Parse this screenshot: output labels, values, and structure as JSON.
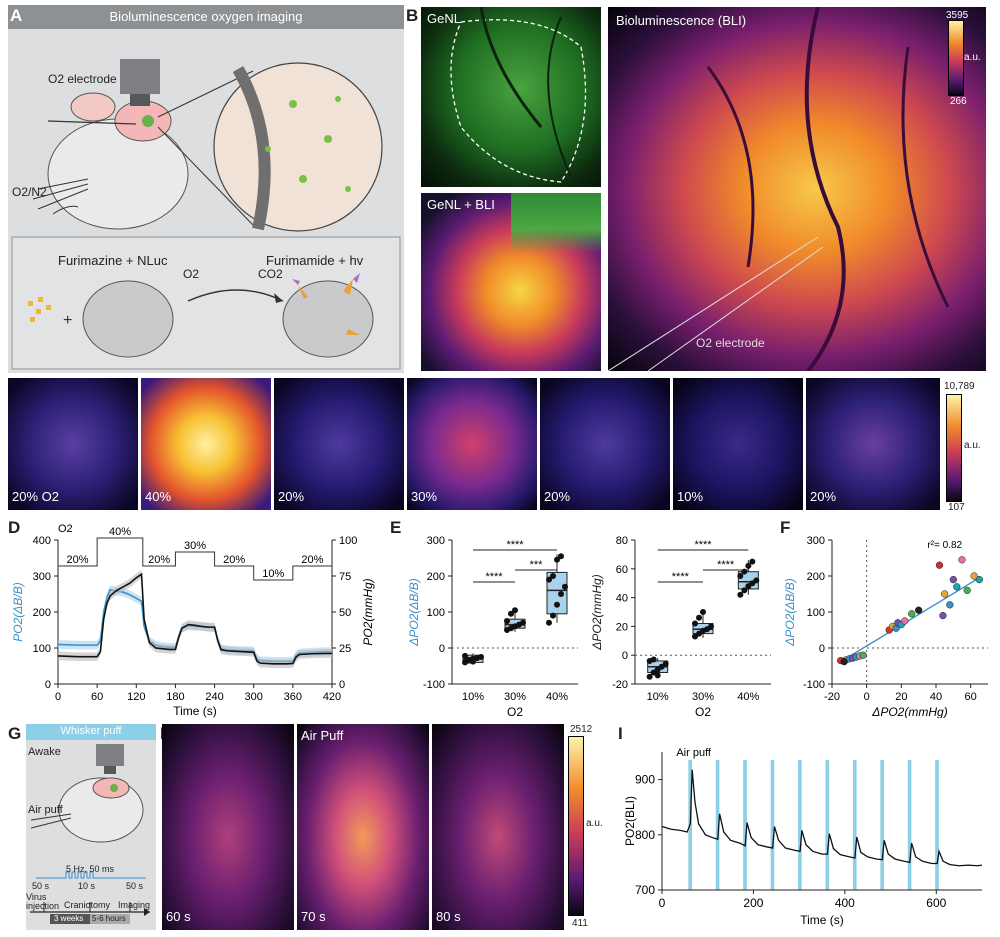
{
  "panels": {
    "A": {
      "label": "A",
      "title": "Bioluminescence oxygen imaging",
      "electrode": "O2 electrode",
      "gas": "O2/N2",
      "reaction_left": "Furimazine + NLuc",
      "reaction_right": "Furimamide + hv",
      "reactant": "O2",
      "product": "CO2"
    },
    "B": {
      "label": "B",
      "img1": "GeNL",
      "img2": "GeNL + BLI",
      "img3": "Bioluminescence (BLI)",
      "cbar_max": "3595",
      "cbar_min": "266",
      "cbar_unit": "a.u.",
      "electrode_label": "O2 electrode"
    },
    "C": {
      "label": "C",
      "frames": [
        "20% O2",
        "40%",
        "20%",
        "30%",
        "20%",
        "10%",
        "20%"
      ],
      "cbar_max": "10,789",
      "cbar_min": "107",
      "cbar_unit": "a.u."
    },
    "D": {
      "label": "D"
    },
    "E": {
      "label": "E"
    },
    "F": {
      "label": "F"
    },
    "G": {
      "label": "G",
      "title": "Whisker puff",
      "awake": "Awake",
      "air_puff": "Air puff",
      "stim": "5 Hz, 50 ms",
      "t1": "50 s",
      "t2": "10 s",
      "t3": "50 s",
      "tl_a": "Virus injection",
      "tl_b": "Craniotomy",
      "tl_c": "Imaging",
      "tl_d": "3 weeks",
      "tl_e": "5-6 hours"
    },
    "H": {
      "label": "H",
      "frames": [
        "60 s",
        "70 s",
        "80 s"
      ],
      "mid_title": "Air Puff",
      "cbar_max": "2512",
      "cbar_min": "411",
      "cbar_unit": "a.u."
    },
    "I": {
      "label": "I"
    }
  },
  "chart_data": [
    {
      "id": "D",
      "type": "line",
      "xlabel": "Time (s)",
      "ylabel_left": "PO2(ΔB/B)",
      "ylabel_right": "PO2(mmHg)",
      "xlim": [
        0,
        420
      ],
      "ylim_left": [
        0,
        400
      ],
      "ylim_right": [
        0,
        100
      ],
      "xticks": [
        0,
        60,
        120,
        180,
        240,
        300,
        360,
        420
      ],
      "yticks_left": [
        0,
        100,
        200,
        300,
        400
      ],
      "yticks_right": [
        0,
        25,
        50,
        75,
        100
      ],
      "o2_label": "O2",
      "o2_steps": [
        {
          "label": "20%",
          "from": 0,
          "to": 60,
          "level": 20
        },
        {
          "label": "40%",
          "from": 60,
          "to": 130,
          "level": 40
        },
        {
          "label": "20%",
          "from": 130,
          "to": 180,
          "level": 20
        },
        {
          "label": "30%",
          "from": 180,
          "to": 240,
          "level": 30
        },
        {
          "label": "20%",
          "from": 240,
          "to": 300,
          "level": 20
        },
        {
          "label": "10%",
          "from": 300,
          "to": 360,
          "level": 10
        },
        {
          "label": "20%",
          "from": 360,
          "to": 420,
          "level": 20
        }
      ],
      "series": [
        {
          "color": "#3a8fc8",
          "x": [
            0,
            30,
            60,
            65,
            70,
            75,
            80,
            90,
            100,
            110,
            120,
            128,
            132,
            140,
            150,
            160,
            170,
            180,
            185,
            190,
            200,
            210,
            220,
            230,
            240,
            245,
            250,
            260,
            280,
            300,
            305,
            310,
            330,
            350,
            360,
            365,
            370,
            390,
            410,
            420
          ],
          "y": [
            110,
            108,
            108,
            120,
            200,
            240,
            262,
            258,
            255,
            248,
            238,
            230,
            160,
            120,
            108,
            104,
            102,
            102,
            130,
            155,
            162,
            160,
            160,
            158,
            156,
            120,
            98,
            95,
            93,
            92,
            70,
            65,
            63,
            63,
            64,
            80,
            86,
            88,
            90,
            90
          ]
        },
        {
          "color": "#111111",
          "x": [
            0,
            30,
            60,
            65,
            70,
            75,
            80,
            90,
            100,
            110,
            120,
            128,
            132,
            140,
            150,
            160,
            170,
            180,
            185,
            190,
            200,
            210,
            220,
            230,
            240,
            245,
            250,
            260,
            280,
            300,
            305,
            310,
            330,
            350,
            360,
            365,
            370,
            390,
            410,
            420
          ],
          "y": [
            78,
            76,
            76,
            90,
            180,
            225,
            245,
            260,
            270,
            280,
            295,
            305,
            180,
            115,
            100,
            98,
            96,
            96,
            130,
            155,
            165,
            163,
            160,
            158,
            158,
            120,
            95,
            92,
            90,
            88,
            64,
            58,
            56,
            56,
            57,
            75,
            82,
            84,
            85,
            85
          ]
        }
      ]
    },
    {
      "id": "E1",
      "type": "box",
      "xlabel": "O2",
      "ylabel": "ΔPO2(ΔB/B)",
      "categories": [
        "10%",
        "30%",
        "40%"
      ],
      "ylim": [
        -100,
        300
      ],
      "yticks": [
        -100,
        0,
        100,
        200,
        300
      ],
      "boxes": [
        {
          "q1": -40,
          "median": -30,
          "q3": -20,
          "min": -45,
          "max": -15
        },
        {
          "q1": 55,
          "median": 65,
          "q3": 80,
          "min": 45,
          "max": 105
        },
        {
          "q1": 95,
          "median": 160,
          "q3": 210,
          "min": 70,
          "max": 260
        }
      ],
      "points": [
        [
          -40,
          -35,
          -30,
          -28,
          -25,
          -22,
          -33,
          -38
        ],
        [
          50,
          55,
          60,
          65,
          70,
          75,
          95,
          105
        ],
        [
          70,
          90,
          120,
          150,
          170,
          190,
          200,
          245,
          255
        ]
      ],
      "significance": [
        "****",
        "***",
        "****"
      ]
    },
    {
      "id": "E2",
      "type": "box",
      "xlabel": "O2",
      "ylabel": "ΔPO2(mmHg)",
      "categories": [
        "10%",
        "30%",
        "40%"
      ],
      "ylim": [
        -20,
        80
      ],
      "yticks": [
        -20,
        0,
        20,
        40,
        60,
        80
      ],
      "boxes": [
        {
          "q1": -12,
          "median": -8,
          "q3": -4,
          "min": -16,
          "max": -2
        },
        {
          "q1": 15,
          "median": 18,
          "q3": 22,
          "min": 12,
          "max": 30
        },
        {
          "q1": 46,
          "median": 51,
          "q3": 58,
          "min": 42,
          "max": 66
        }
      ],
      "points": [
        [
          -15,
          -12,
          -10,
          -8,
          -6,
          -4,
          -3,
          -14
        ],
        [
          13,
          15,
          17,
          18,
          20,
          22,
          26,
          30
        ],
        [
          42,
          45,
          48,
          50,
          52,
          55,
          58,
          62,
          65
        ]
      ],
      "significance": [
        "****",
        "****",
        "****"
      ]
    },
    {
      "id": "F",
      "type": "scatter",
      "xlabel": "ΔPO2(mmHg)",
      "ylabel": "ΔPO2(ΔB/B)",
      "xlim": [
        -20,
        70
      ],
      "ylim": [
        -100,
        300
      ],
      "xticks": [
        -20,
        0,
        20,
        40,
        60
      ],
      "yticks": [
        -100,
        0,
        100,
        200,
        300
      ],
      "annotation": "r²= 0.82",
      "points": [
        {
          "x": -15,
          "y": -35,
          "c": "#d62f2f"
        },
        {
          "x": -12,
          "y": -33,
          "c": "#e8a23a"
        },
        {
          "x": -10,
          "y": -30,
          "c": "#3a8fc8"
        },
        {
          "x": -8,
          "y": -28,
          "c": "#7a4fb0"
        },
        {
          "x": -6,
          "y": -25,
          "c": "#1aa5b0"
        },
        {
          "x": -4,
          "y": -22,
          "c": "#e56fa8"
        },
        {
          "x": -2,
          "y": -20,
          "c": "#4caf50"
        },
        {
          "x": -13,
          "y": -38,
          "c": "#222222"
        },
        {
          "x": 13,
          "y": 50,
          "c": "#d62f2f"
        },
        {
          "x": 15,
          "y": 60,
          "c": "#e8a23a"
        },
        {
          "x": 17,
          "y": 55,
          "c": "#3a8fc8"
        },
        {
          "x": 18,
          "y": 70,
          "c": "#7a4fb0"
        },
        {
          "x": 20,
          "y": 65,
          "c": "#1aa5b0"
        },
        {
          "x": 22,
          "y": 75,
          "c": "#e56fa8"
        },
        {
          "x": 26,
          "y": 95,
          "c": "#4caf50"
        },
        {
          "x": 30,
          "y": 105,
          "c": "#222222"
        },
        {
          "x": 42,
          "y": 230,
          "c": "#d62f2f"
        },
        {
          "x": 45,
          "y": 150,
          "c": "#e8a23a"
        },
        {
          "x": 48,
          "y": 120,
          "c": "#3a8fc8"
        },
        {
          "x": 50,
          "y": 190,
          "c": "#7a4fb0"
        },
        {
          "x": 52,
          "y": 170,
          "c": "#1aa5b0"
        },
        {
          "x": 55,
          "y": 245,
          "c": "#e56fa8"
        },
        {
          "x": 58,
          "y": 160,
          "c": "#4caf50"
        },
        {
          "x": 62,
          "y": 200,
          "c": "#e8a23a"
        },
        {
          "x": 65,
          "y": 190,
          "c": "#1aa5b0"
        },
        {
          "x": 44,
          "y": 90,
          "c": "#7a4fb0"
        }
      ],
      "fit": {
        "x": [
          -15,
          65
        ],
        "y": [
          -38,
          195
        ],
        "color": "#3a8fc8"
      }
    },
    {
      "id": "I",
      "type": "line",
      "xlabel": "Time (s)",
      "ylabel": "PO2(BLI)",
      "annotation": "Air puff",
      "xlim": [
        0,
        700
      ],
      "ylim": [
        700,
        950
      ],
      "xticks": [
        0,
        200,
        400,
        600
      ],
      "yticks": [
        700,
        800,
        900
      ],
      "puffs": [
        62,
        122,
        182,
        242,
        302,
        362,
        422,
        482,
        542,
        602
      ],
      "puff_width": 8,
      "color": "#111111",
      "x": [
        0,
        20,
        40,
        55,
        62,
        66,
        72,
        80,
        95,
        110,
        122,
        126,
        135,
        150,
        170,
        182,
        186,
        195,
        210,
        230,
        242,
        246,
        255,
        270,
        290,
        302,
        306,
        315,
        330,
        350,
        362,
        366,
        375,
        390,
        410,
        422,
        426,
        435,
        450,
        470,
        482,
        486,
        495,
        510,
        530,
        542,
        546,
        555,
        570,
        590,
        602,
        606,
        615,
        630,
        650,
        670,
        690,
        700
      ],
      "y": [
        815,
        810,
        808,
        805,
        820,
        918,
        860,
        820,
        800,
        795,
        792,
        838,
        805,
        790,
        785,
        780,
        822,
        795,
        782,
        778,
        776,
        815,
        790,
        776,
        772,
        770,
        808,
        782,
        770,
        765,
        765,
        802,
        775,
        764,
        760,
        758,
        796,
        768,
        760,
        756,
        755,
        790,
        765,
        756,
        752,
        750,
        785,
        760,
        752,
        748,
        748,
        770,
        752,
        746,
        744,
        745,
        744,
        745
      ]
    }
  ]
}
